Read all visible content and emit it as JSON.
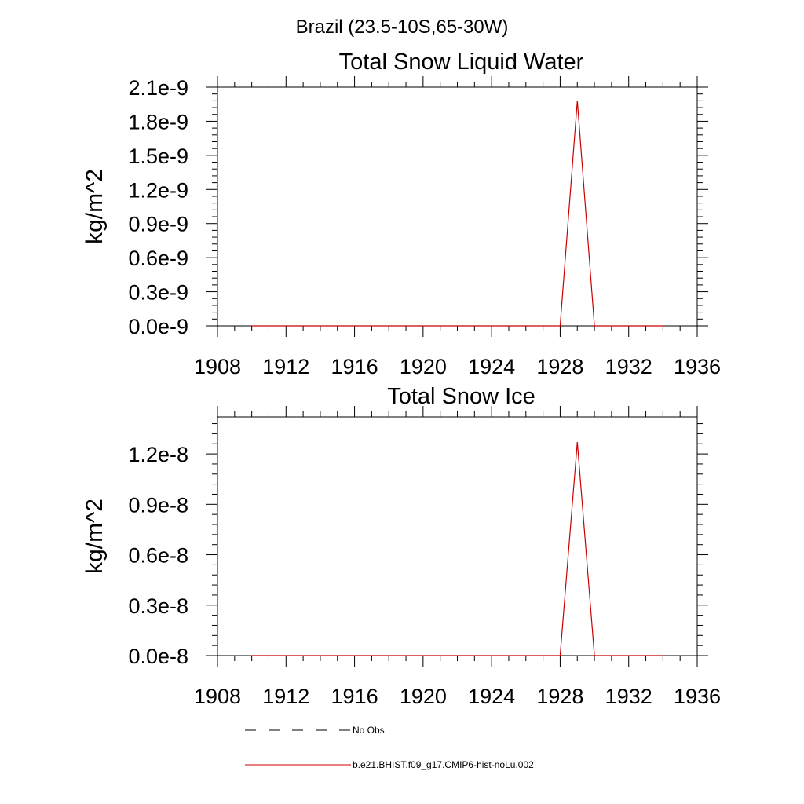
{
  "page": {
    "suptitle": "Brazil (23.5-10S,65-30W)"
  },
  "chart_data": [
    {
      "type": "line",
      "title": "Total Snow Liquid Water",
      "xlabel": "",
      "ylabel": "kg/m^2",
      "xlim": [
        1908,
        1936
      ],
      "ylim": [
        0,
        2.1e-09
      ],
      "xticks": [
        1908,
        1912,
        1916,
        1920,
        1924,
        1928,
        1932,
        1936
      ],
      "xtick_labels": [
        "1908",
        "1912",
        "1916",
        "1920",
        "1924",
        "1928",
        "1932",
        "1936"
      ],
      "yticks": [
        0,
        3e-10,
        6e-10,
        9e-10,
        1.2e-09,
        1.5e-09,
        1.8e-09,
        2.1e-09
      ],
      "ytick_labels": [
        "0.0e-9",
        "0.3e-9",
        "0.6e-9",
        "0.9e-9",
        "1.2e-9",
        "1.5e-9",
        "1.8e-9",
        "2.1e-9"
      ],
      "grid": false,
      "series": [
        {
          "name": "b.e21.BHIST.f09_g17.CMIP6-hist-noLu.002",
          "color": "#cc0000",
          "x": [
            1910,
            1911,
            1912,
            1913,
            1914,
            1915,
            1916,
            1917,
            1918,
            1919,
            1920,
            1921,
            1922,
            1923,
            1924,
            1925,
            1926,
            1927,
            1928,
            1929,
            1930,
            1931,
            1932,
            1933,
            1934
          ],
          "y": [
            0,
            0,
            0,
            0,
            0,
            0,
            0,
            0,
            0,
            0,
            0,
            0,
            0,
            0,
            0,
            0,
            0,
            0,
            0,
            1.98e-09,
            0,
            0,
            0,
            0,
            0
          ]
        }
      ]
    },
    {
      "type": "line",
      "title": "Total Snow Ice",
      "xlabel": "",
      "ylabel": "kg/m^2",
      "xlim": [
        1908,
        1936
      ],
      "ylim": [
        0,
        1.42e-08
      ],
      "xticks": [
        1908,
        1912,
        1916,
        1920,
        1924,
        1928,
        1932,
        1936
      ],
      "xtick_labels": [
        "1908",
        "1912",
        "1916",
        "1920",
        "1924",
        "1928",
        "1932",
        "1936"
      ],
      "yticks": [
        0,
        3e-09,
        6e-09,
        9e-09,
        1.2e-08
      ],
      "ytick_labels": [
        "0.0e-8",
        "0.3e-8",
        "0.6e-8",
        "0.9e-8",
        "1.2e-8"
      ],
      "grid": false,
      "series": [
        {
          "name": "b.e21.BHIST.f09_g17.CMIP6-hist-noLu.002",
          "color": "#cc0000",
          "x": [
            1910,
            1911,
            1912,
            1913,
            1914,
            1915,
            1916,
            1917,
            1918,
            1919,
            1920,
            1921,
            1922,
            1923,
            1924,
            1925,
            1926,
            1927,
            1928,
            1929,
            1930,
            1931,
            1932,
            1933,
            1934
          ],
          "y": [
            0,
            0,
            0,
            0,
            0,
            0,
            0,
            0,
            0,
            0,
            0,
            0,
            0,
            0,
            0,
            0,
            0,
            0,
            0,
            1.27e-08,
            0,
            0,
            0,
            0,
            0
          ]
        }
      ]
    }
  ],
  "legend": {
    "placement": "bottom",
    "items": [
      {
        "label": "No Obs",
        "style": "dashed",
        "color": "#000000"
      },
      {
        "label": "b.e21.BHIST.f09_g17.CMIP6-hist-noLu.002",
        "style": "solid",
        "color": "#cc0000"
      }
    ]
  }
}
